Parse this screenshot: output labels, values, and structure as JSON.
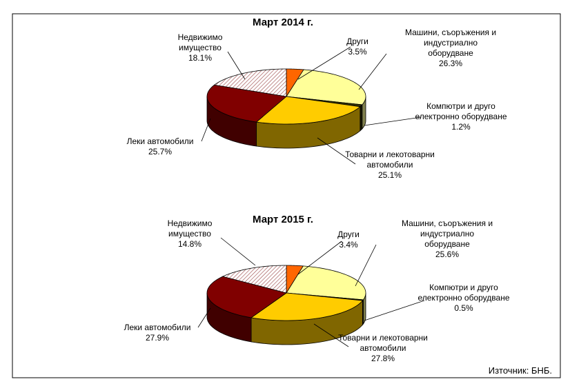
{
  "chart_data": [
    {
      "type": "pie3d",
      "title": "Март 2014 г.",
      "categories": [
        "Други",
        "Машини, съоръжения и индустриално оборудване",
        "Компютри и друго електронно оборудване",
        "Товарни и лекотоварни автомобили",
        "Леки автомобили",
        "Недвижимо имущество"
      ],
      "values": [
        3.5,
        26.3,
        1.2,
        25.1,
        25.7,
        18.1
      ],
      "value_labels": [
        "3.5%",
        "26.3%",
        "1.2%",
        "25.1%",
        "25.7%",
        "18.1%"
      ],
      "colors": [
        "#ff6600",
        "#ffff99",
        "#333300",
        "#ffcc00",
        "#800000",
        "#f4e4e4"
      ]
    },
    {
      "type": "pie3d",
      "title": "Март 2015 г.",
      "categories": [
        "Други",
        "Машини, съоръжения и индустриално оборудване",
        "Компютри и друго електронно оборудване",
        "Товарни и лекотоварни автомобили",
        "Леки автомобили",
        "Недвижимо имущество"
      ],
      "values": [
        3.4,
        25.6,
        0.5,
        27.8,
        27.9,
        14.8
      ],
      "value_labels": [
        "3.4%",
        "25.6%",
        "0.5%",
        "27.8%",
        "27.9%",
        "14.8%"
      ],
      "colors": [
        "#ff6600",
        "#ffff99",
        "#333300",
        "#ffcc00",
        "#800000",
        "#f4e4e4"
      ]
    }
  ],
  "source": "Източник: БНБ."
}
